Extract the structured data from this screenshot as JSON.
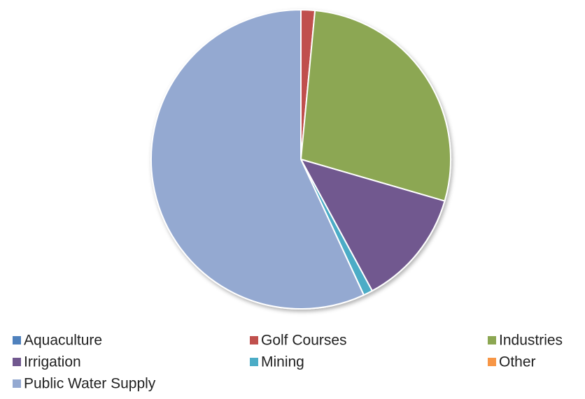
{
  "chart_data": {
    "type": "pie",
    "categories": [
      "Aquaculture",
      "Golf Courses",
      "Industries",
      "Irrigation",
      "Mining",
      "Other",
      "Public Water Supply"
    ],
    "values": [
      0,
      1.5,
      28,
      12.6,
      1,
      0,
      56.9
    ],
    "colors": [
      "#4f81bd",
      "#c0504d",
      "#8ca752",
      "#71588f",
      "#4bacc6",
      "#f79646",
      "#94a9d1"
    ],
    "legend": "bottom"
  }
}
